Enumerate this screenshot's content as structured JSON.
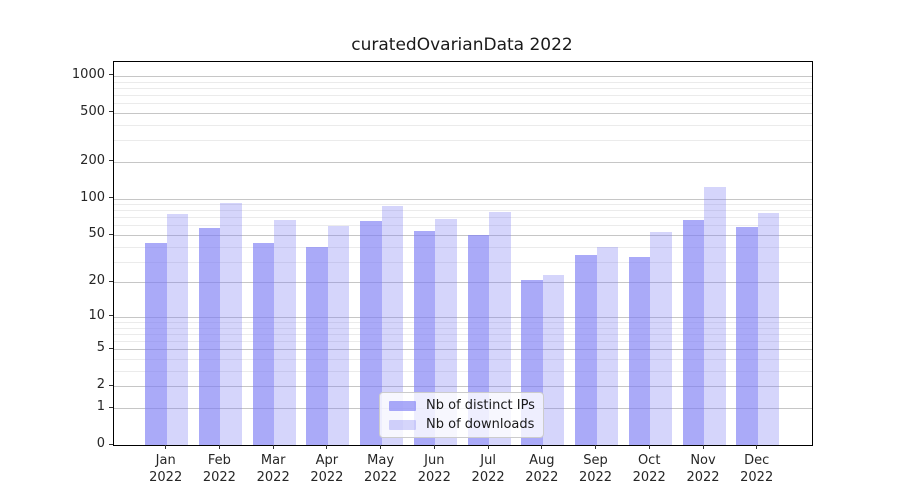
{
  "title": "curatedOvarianData 2022",
  "chart_data": {
    "type": "bar",
    "title": "curatedOvarianData 2022",
    "categories": [
      "Jan 2022",
      "Feb 2022",
      "Mar 2022",
      "Apr 2022",
      "May 2022",
      "Jun 2022",
      "Jul 2022",
      "Aug 2022",
      "Sep 2022",
      "Oct 2022",
      "Nov 2022",
      "Dec 2022"
    ],
    "series": [
      {
        "name": "Nb of distinct IPs",
        "values": [
          43,
          57,
          43,
          40,
          65,
          54,
          50,
          21,
          34,
          33,
          66,
          58
        ]
      },
      {
        "name": "Nb of downloads",
        "values": [
          75,
          92,
          66,
          59,
          87,
          68,
          77,
          23,
          40,
          53,
          125,
          76
        ]
      }
    ],
    "yscale": "log1p",
    "ylim": [
      0,
      1300
    ],
    "yticks": [
      0,
      1,
      2,
      5,
      10,
      20,
      50,
      100,
      200,
      500,
      1000
    ],
    "minor_gridlines": [
      3,
      4,
      6,
      7,
      8,
      9,
      30,
      40,
      60,
      70,
      80,
      90,
      300,
      400,
      600,
      700,
      800,
      900
    ],
    "grid": "on",
    "legend_position": "lower center"
  },
  "colors": {
    "bar_base": "#7c7cf4",
    "bar_alpha_ips": 0.65,
    "bar_alpha_downloads": 0.32,
    "grid_major": "#c6c6c6",
    "grid_minor": "#ebebeb",
    "spine": "#000000",
    "text": "#262626"
  }
}
